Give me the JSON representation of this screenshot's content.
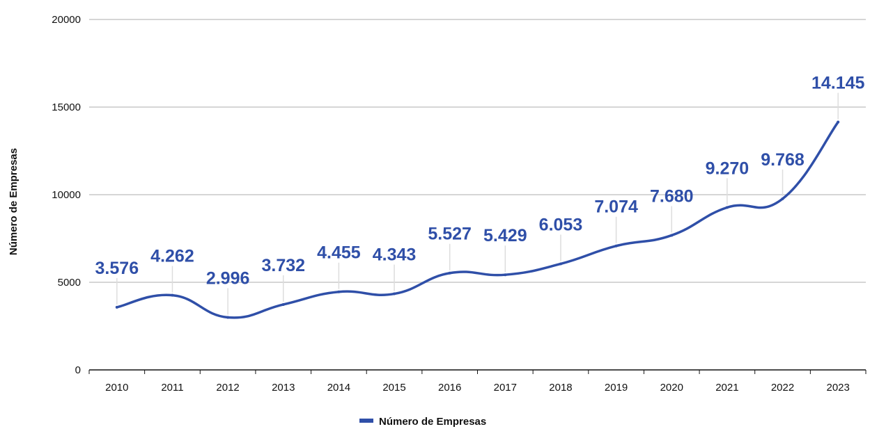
{
  "chart_data": {
    "type": "line",
    "categories": [
      "2010",
      "2011",
      "2012",
      "2013",
      "2014",
      "2015",
      "2016",
      "2017",
      "2018",
      "2019",
      "2020",
      "2021",
      "2022",
      "2023"
    ],
    "series": [
      {
        "name": "Número de Empresas",
        "values": [
          3576,
          4262,
          2996,
          3732,
          4455,
          4343,
          5527,
          5429,
          6053,
          7074,
          7680,
          9270,
          9768,
          14145
        ],
        "labels": [
          "3.576",
          "4.262",
          "2.996",
          "3.732",
          "4.455",
          "4.343",
          "5.527",
          "5.429",
          "6.053",
          "7.074",
          "7.680",
          "9.270",
          "9.768",
          "14.145"
        ]
      }
    ],
    "ylabel": "Número de Empresas",
    "xlabel": "",
    "ylim": [
      0,
      20000
    ],
    "yticks": [
      "0",
      "5000",
      "10000",
      "15000",
      "20000"
    ],
    "ytick_values": [
      0,
      5000,
      10000,
      15000,
      20000
    ],
    "grid": true,
    "legend_position": "bottom-center",
    "smooth": true,
    "colors": {
      "series": "#2f4fa8",
      "grid": "#c8c8c8",
      "axis": "#111111",
      "leader": "#dddddd"
    }
  }
}
